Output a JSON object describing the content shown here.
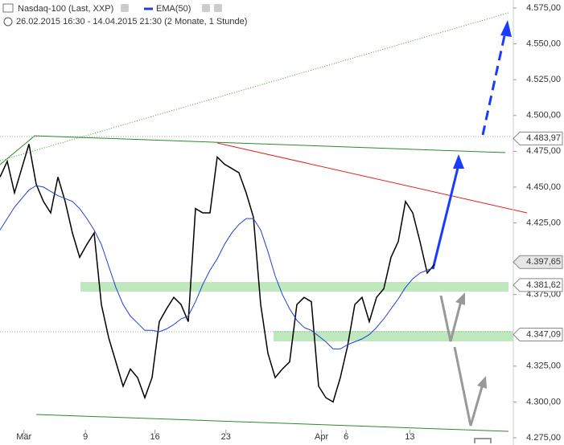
{
  "chart_data": {
    "type": "line",
    "title": "Nasdaq-100 (Last, XXP)",
    "subtitle": "26.02.2015 16:30 - 14.04.2015 21:30 (2 Monate, 1 Stunde)",
    "series": [
      {
        "name": "Nasdaq-100",
        "color": "#000000",
        "values": [
          4457,
          4468,
          4446,
          4463,
          4480,
          4452,
          4440,
          4432,
          4457,
          4440,
          4418,
          4401,
          4410,
          4418,
          4368,
          4345,
          4328,
          4311,
          4323,
          4317,
          4303,
          4317,
          4356,
          4365,
          4373,
          4368,
          4356,
          4435,
          4432,
          4432,
          4471,
          4466,
          4463,
          4460,
          4446,
          4429,
          4368,
          4334,
          4317,
          4323,
          4328,
          4368,
          4373,
          4370,
          4311,
          4303,
          4300,
          4317,
          4339,
          4368,
          4373,
          4356,
          4373,
          4379,
          4401,
          4412,
          4440,
          4432,
          4412,
          4390,
          4396
        ]
      },
      {
        "name": "EMA(50)",
        "color": "#1f3fd6",
        "values": [
          4420,
          4428,
          4436,
          4442,
          4448,
          4451,
          4450,
          4447,
          4444,
          4442,
          4440,
          4435,
          4428,
          4420,
          4410,
          4395,
          4380,
          4368,
          4360,
          4355,
          4350,
          4350,
          4349,
          4351,
          4354,
          4358,
          4360,
          4370,
          4382,
          4392,
          4400,
          4410,
          4418,
          4424,
          4428,
          4428,
          4420,
          4405,
          4388,
          4375,
          4365,
          4357,
          4352,
          4350,
          4346,
          4342,
          4337,
          4337,
          4340,
          4342,
          4344,
          4347,
          4352,
          4358,
          4365,
          4372,
          4380,
          4386,
          4390,
          4392,
          4394
        ]
      }
    ],
    "xlim": [
      0,
      70
    ],
    "xticks": [
      {
        "value": 3.3,
        "label": "Mär"
      },
      {
        "value": 11.8,
        "label": "9"
      },
      {
        "value": 21.4,
        "label": "16"
      },
      {
        "value": 31.2,
        "label": "23"
      },
      {
        "value": 44.4,
        "label": "Apr"
      },
      {
        "value": 47.8,
        "label": "6"
      },
      {
        "value": 56.6,
        "label": "13"
      }
    ],
    "ylim": [
      4275,
      4575
    ],
    "yticks": [
      {
        "value": 4275,
        "label": "4.275,00"
      },
      {
        "value": 4300,
        "label": "4.300,00"
      },
      {
        "value": 4325,
        "label": "4.325,00"
      },
      {
        "value": 4375,
        "label": "4.375,00"
      },
      {
        "value": 4425,
        "label": "4.425,00"
      },
      {
        "value": 4450,
        "label": "4.450,00"
      },
      {
        "value": 4475,
        "label": "4.475,00"
      },
      {
        "value": 4500,
        "label": "4.500,00"
      },
      {
        "value": 4525,
        "label": "4.525,00"
      },
      {
        "value": 4550,
        "label": "4.550,00"
      },
      {
        "value": 4575,
        "label": "4.575,00"
      }
    ],
    "price_flags": [
      {
        "value": 4483.97,
        "label": "4.483,97"
      },
      {
        "value": 4397.65,
        "label": "4.397,65"
      },
      {
        "value": 4381.62,
        "label": "4.381,62"
      },
      {
        "value": 4347.09,
        "label": "4.347,09"
      }
    ]
  }
}
